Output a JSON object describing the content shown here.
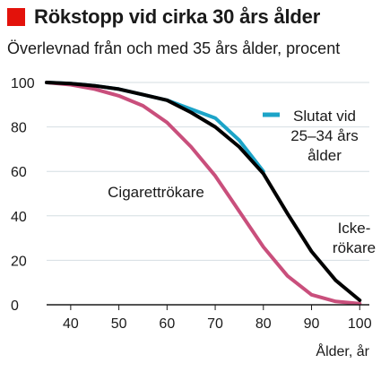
{
  "header": {
    "title": "Rökstopp vid cirka 30 års ålder",
    "subtitle": "Överlevnad från och med 35 års ålder, procent",
    "accent_color": "#e3120b"
  },
  "chart_data": {
    "type": "line",
    "title": "Rökstopp vid cirka 30 års ålder",
    "subtitle": "Överlevnad från och med 35 års ålder, procent",
    "xlabel": "Ålder, år",
    "ylabel": "",
    "xlim": [
      35,
      102
    ],
    "ylim": [
      0,
      100
    ],
    "x_ticks": [
      40,
      50,
      60,
      70,
      80,
      90,
      100
    ],
    "y_ticks": [
      0,
      20,
      40,
      60,
      80,
      100
    ],
    "grid": true,
    "series": [
      {
        "name": "Icke-rökare",
        "label_lines": [
          "Icke-",
          "rökare"
        ],
        "color": "#000000",
        "x": [
          35,
          40,
          45,
          50,
          55,
          60,
          65,
          70,
          75,
          80,
          85,
          90,
          95,
          100
        ],
        "y": [
          100,
          99.5,
          98.5,
          97,
          94.5,
          92,
          86.5,
          80,
          71,
          59,
          41,
          24,
          11,
          2
        ]
      },
      {
        "name": "Slutat vid 25–34 års ålder",
        "label_lines": [
          "Slutat vid",
          "25–34 års",
          "ålder"
        ],
        "color": "#1ca4c8",
        "x": [
          35,
          40,
          45,
          50,
          55,
          60,
          65,
          70,
          75,
          80
        ],
        "y": [
          100,
          99.5,
          98.5,
          97,
          94.5,
          92,
          88,
          84,
          74,
          60
        ]
      },
      {
        "name": "Cigarettrökare",
        "label_lines": [
          "Cigarettrökare"
        ],
        "color": "#c94f7c",
        "x": [
          35,
          40,
          45,
          50,
          55,
          60,
          65,
          70,
          75,
          80,
          85,
          90,
          95,
          100
        ],
        "y": [
          100,
          99,
          97,
          94,
          89.5,
          82,
          71,
          58,
          42,
          26,
          13,
          4.5,
          1.5,
          0.5
        ]
      }
    ]
  }
}
